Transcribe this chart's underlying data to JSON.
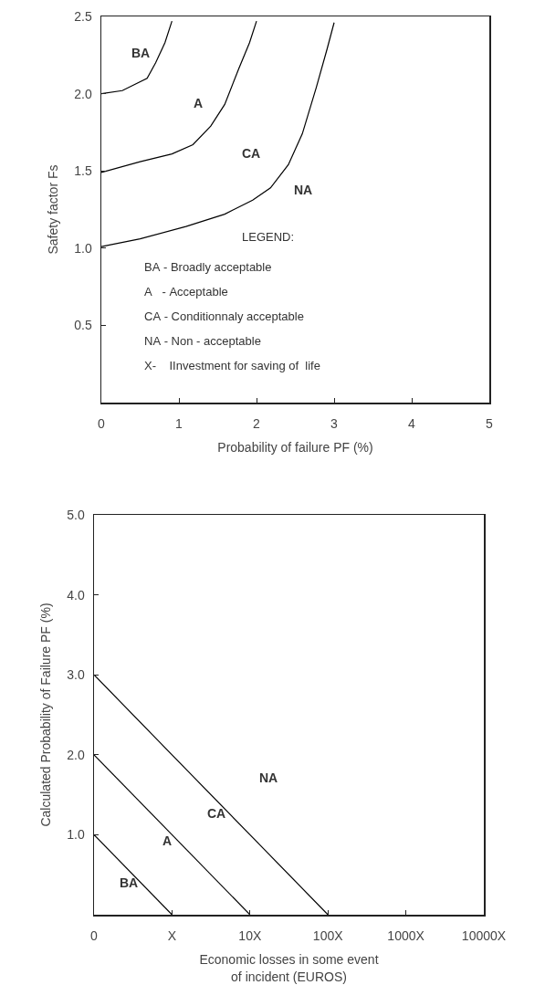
{
  "chart_data": [
    {
      "type": "line",
      "xlabel": "Probability of failure PF (%)",
      "ylabel": "Safety factor Fs",
      "xlim": [
        0,
        5
      ],
      "ylim": [
        0,
        2.5
      ],
      "xticks": [
        0,
        1,
        2,
        3,
        4,
        5
      ],
      "yticks": [
        0.5,
        {
          "value": 1.0,
          "label": "1.0"
        },
        1.5,
        {
          "value": 2.0,
          "label": "2.0"
        },
        2.5
      ],
      "grid": false,
      "marker": "none",
      "line_style": "solid",
      "series": [
        {
          "color": "#000000",
          "x": [
            0,
            0.27,
            0.59,
            0.7,
            0.82,
            0.91
          ],
          "values": [
            2.0,
            2.02,
            2.1,
            2.2,
            2.33,
            2.47
          ]
        },
        {
          "color": "#000000",
          "x": [
            0,
            0.5,
            0.91,
            1.18,
            1.41,
            1.59,
            1.77,
            1.91,
            2.0
          ],
          "values": [
            1.49,
            1.56,
            1.61,
            1.67,
            1.79,
            1.93,
            2.16,
            2.33,
            2.47
          ]
        },
        {
          "color": "#000000",
          "x": [
            0,
            0.5,
            1.09,
            1.59,
            1.95,
            2.18,
            2.41,
            2.59,
            2.77,
            2.91,
            3.0
          ],
          "values": [
            1.01,
            1.06,
            1.14,
            1.22,
            1.31,
            1.39,
            1.54,
            1.74,
            2.04,
            2.29,
            2.46
          ]
        }
      ],
      "annotations": [
        "BA",
        "A",
        "CA",
        "NA",
        "LEGEND:",
        "BA - Broadly acceptable",
        "A   - Acceptable",
        "CA - Conditionnaly acceptable",
        "NA - Non - acceptable",
        "X-    IInvestment for saving of  life"
      ]
    },
    {
      "type": "line",
      "xlabel": "Economic losses in some event\nof incident (EUROS)",
      "ylabel": "Calculated Probability of Failure PF (%)",
      "categories": [
        "0",
        "X",
        "10X",
        "100X",
        "1000X",
        "10000X"
      ],
      "ylim": [
        0,
        5
      ],
      "yticks": [
        {
          "value": 1,
          "label": "1.0"
        },
        {
          "value": 2,
          "label": "2.0"
        },
        {
          "value": 3,
          "label": "3.0"
        },
        {
          "value": 4,
          "label": "4.0"
        },
        {
          "value": 5,
          "label": "5.0"
        }
      ],
      "grid": false,
      "marker": "none",
      "line_style": "solid",
      "series": [
        {
          "color": "#000000",
          "values": [
            1.0,
            0,
            null,
            null,
            null,
            null
          ]
        },
        {
          "color": "#000000",
          "values": [
            2.0,
            1.0,
            0,
            null,
            null,
            null
          ]
        },
        {
          "color": "#000000",
          "values": [
            3.0,
            2.0,
            1.0,
            0,
            null,
            null
          ]
        }
      ],
      "annotations": [
        "NA",
        "CA",
        "A",
        "BA"
      ]
    }
  ]
}
